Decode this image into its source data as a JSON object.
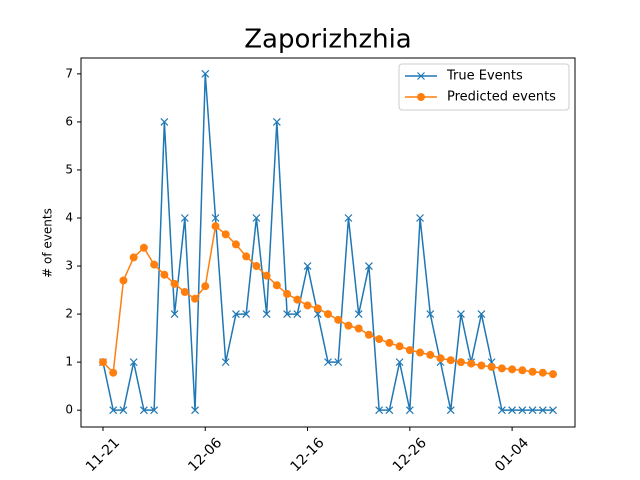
{
  "chart_data": {
    "type": "line",
    "title": "Zaporizhzhia",
    "ylabel": "# of events",
    "categories": [
      "11-21",
      null,
      null,
      null,
      null,
      null,
      null,
      null,
      null,
      null,
      "12-06",
      null,
      null,
      null,
      null,
      null,
      null,
      null,
      null,
      null,
      "12-16",
      null,
      null,
      null,
      null,
      null,
      null,
      null,
      null,
      null,
      "12-26",
      null,
      null,
      null,
      null,
      null,
      null,
      null,
      null,
      null,
      "01-04",
      null,
      null,
      null,
      null
    ],
    "series": [
      {
        "name": "True Events",
        "color": "#1f77b4",
        "marker": "x",
        "values": [
          1,
          0,
          0,
          1,
          0,
          0,
          6,
          2,
          4,
          0,
          7,
          4,
          1,
          2,
          2,
          4,
          2,
          6,
          2,
          2,
          3,
          2,
          1,
          1,
          4,
          2,
          3,
          0,
          0,
          1,
          0,
          4,
          2,
          1,
          0,
          2,
          1,
          2,
          1,
          0,
          0,
          0,
          0,
          0,
          0
        ]
      },
      {
        "name": "Predicted events",
        "color": "#ff7f0e",
        "marker": "o",
        "values": [
          1.0,
          0.78,
          2.7,
          3.18,
          3.38,
          3.03,
          2.82,
          2.63,
          2.46,
          2.32,
          2.58,
          3.83,
          3.66,
          3.45,
          3.2,
          3.0,
          2.8,
          2.6,
          2.42,
          2.3,
          2.18,
          2.12,
          2.0,
          1.88,
          1.76,
          1.7,
          1.57,
          1.48,
          1.4,
          1.33,
          1.25,
          1.2,
          1.15,
          1.08,
          1.04,
          1.0,
          0.97,
          0.93,
          0.9,
          0.87,
          0.85,
          0.83,
          0.8,
          0.78,
          0.75
        ]
      }
    ],
    "ylim": [
      -0.35,
      7.33
    ],
    "yticks": [
      0,
      1,
      2,
      3,
      4,
      5,
      6,
      7
    ],
    "legend": "upper right"
  }
}
